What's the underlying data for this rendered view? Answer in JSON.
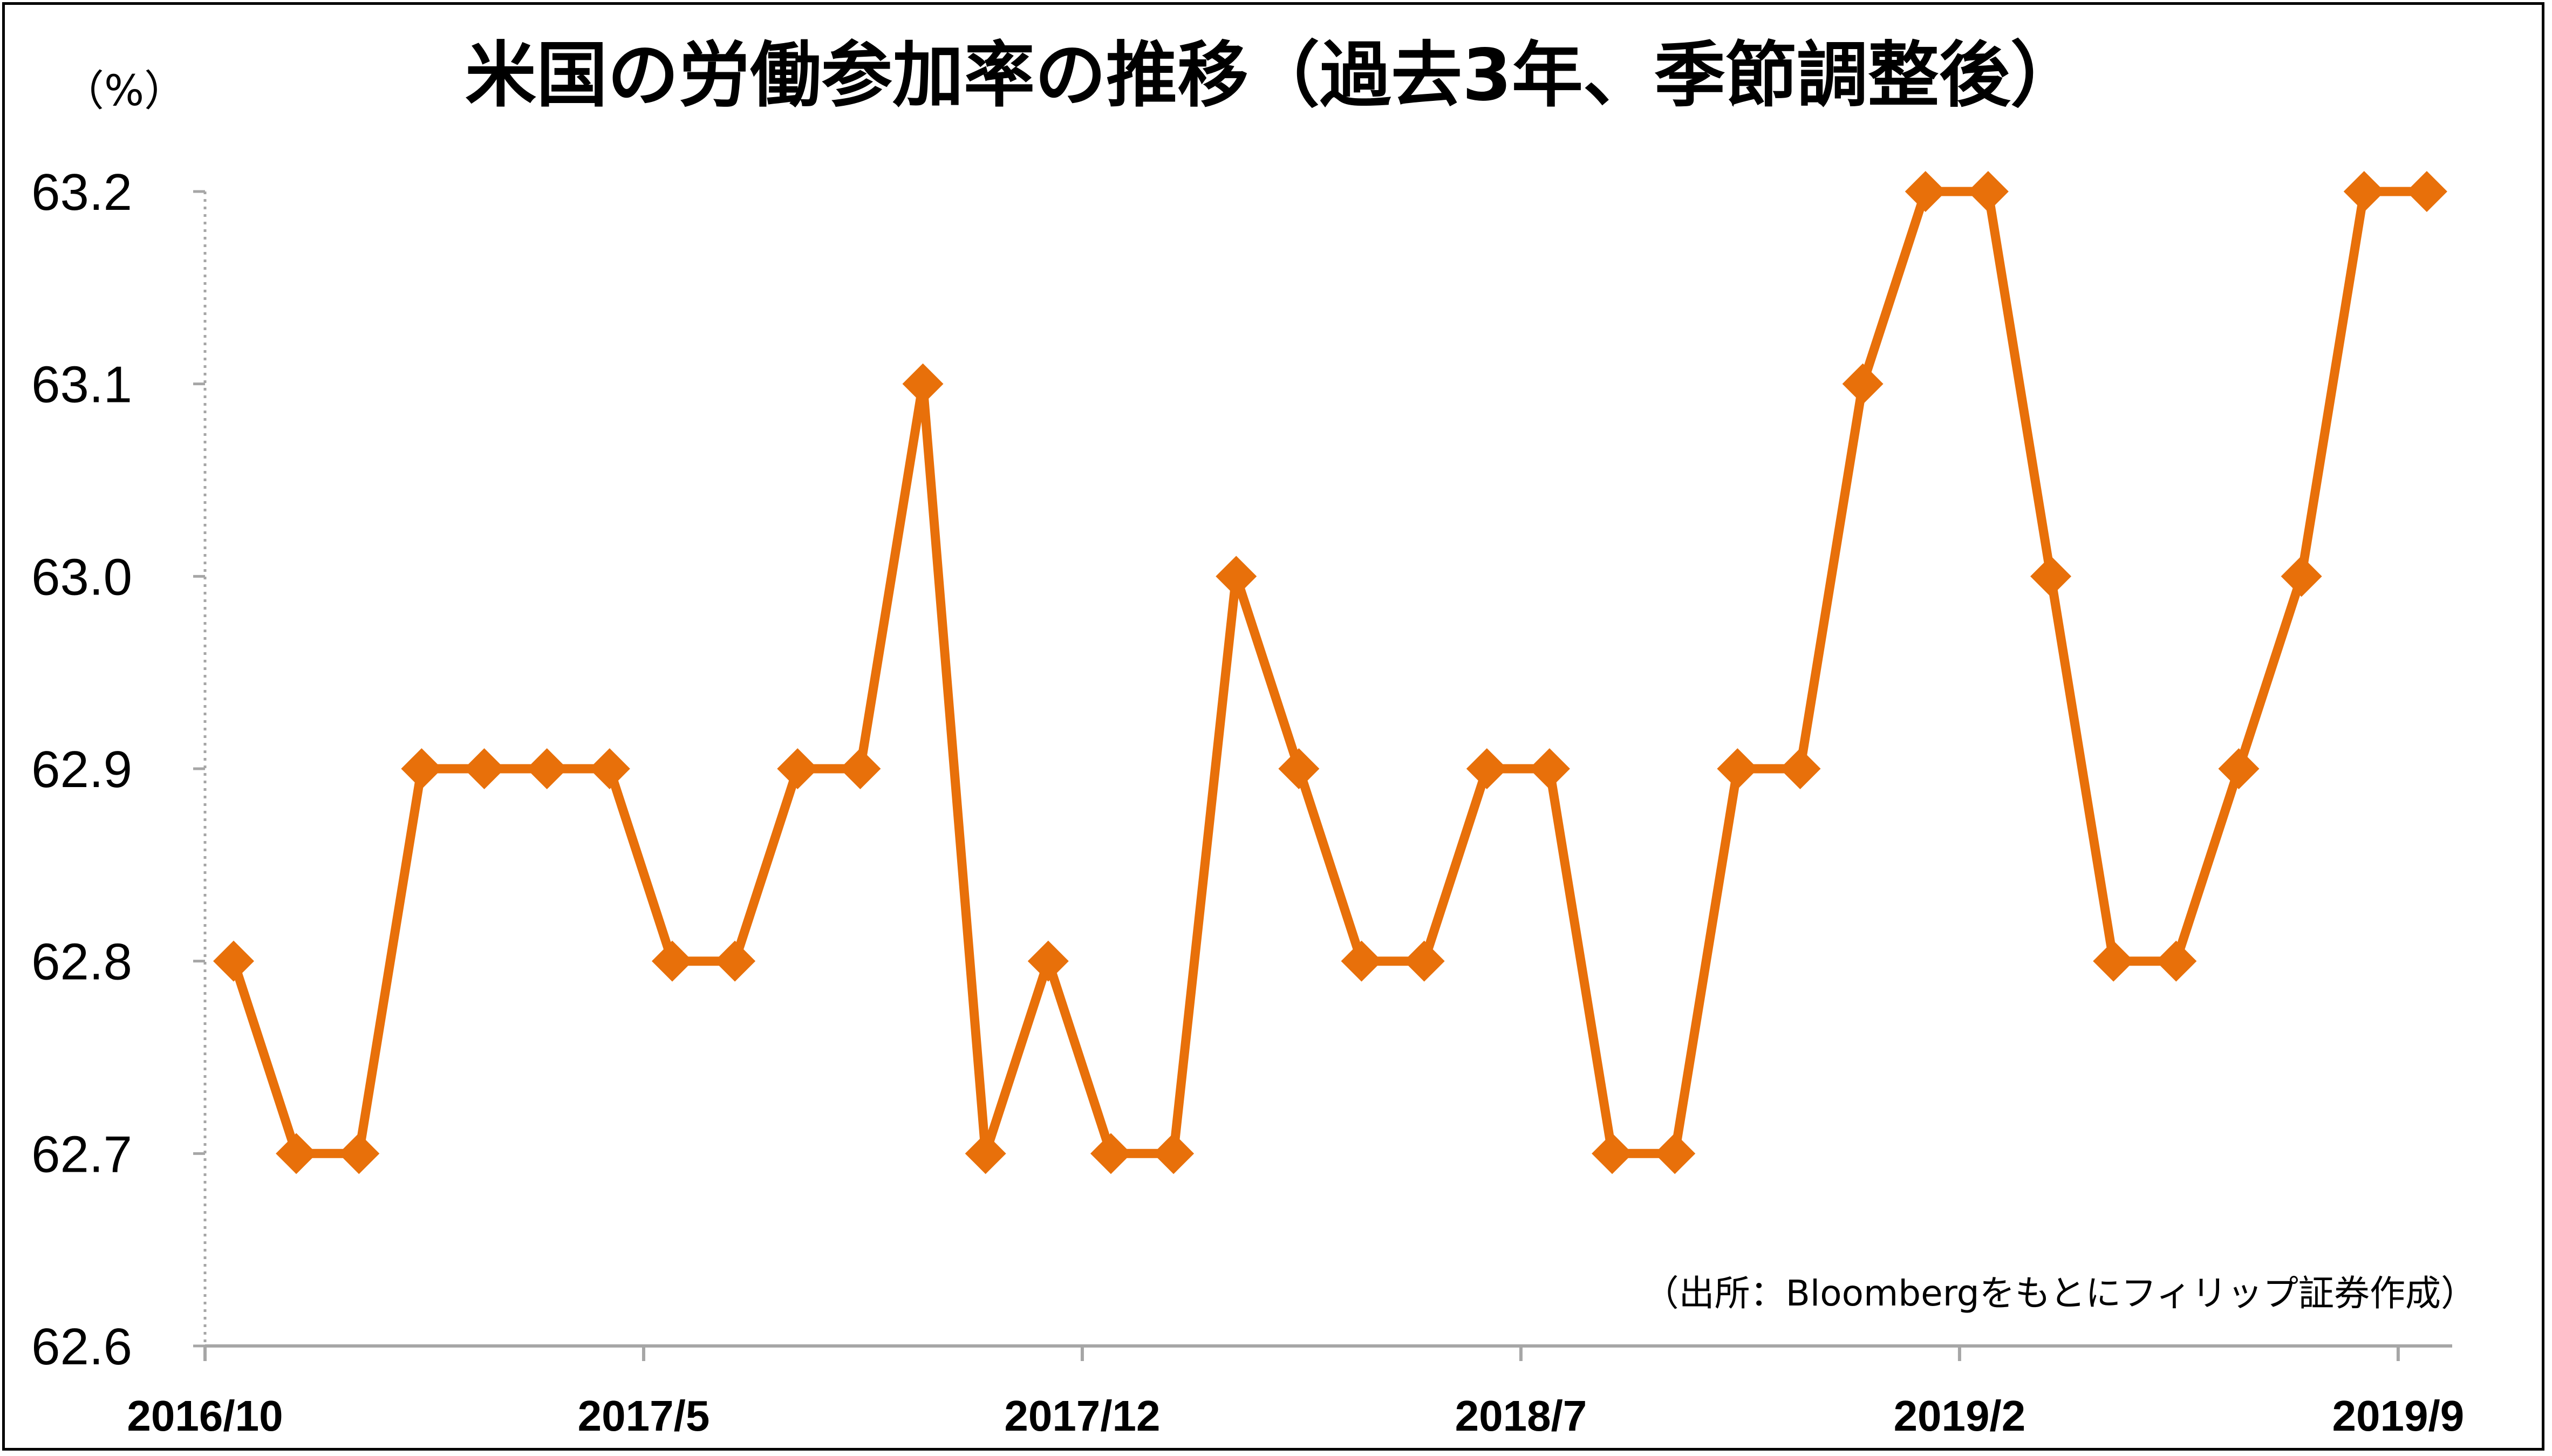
{
  "title": "米国の労働参加率の推移（過去3年、季節調整後）",
  "unit_label": "（%）",
  "source_note": "（出所：Bloombergをもとにフィリップ証券作成）",
  "colors": {
    "series": "#E8700A",
    "axis": "#a6a6a6",
    "text": "#000000",
    "border": "#000000"
  },
  "chart_data": {
    "type": "line",
    "title": "米国の労働参加率の推移（過去3年、季節調整後）",
    "ylabel": "（%）",
    "xlabel": "",
    "ylim": [
      62.6,
      63.2
    ],
    "yticks": [
      "62.6",
      "62.7",
      "62.8",
      "62.9",
      "63.0",
      "63.1",
      "63.2"
    ],
    "xtick_labels": [
      "2016/10",
      "2017/5",
      "2017/12",
      "2018/7",
      "2019/2",
      "2019/9"
    ],
    "grid": false,
    "marker": "diamond",
    "x": [
      "2016/10",
      "2016/11",
      "2016/12",
      "2017/1",
      "2017/2",
      "2017/3",
      "2017/4",
      "2017/5",
      "2017/6",
      "2017/7",
      "2017/8",
      "2017/9",
      "2017/10",
      "2017/11",
      "2017/12",
      "2018/1",
      "2018/2",
      "2018/3",
      "2018/4",
      "2018/5",
      "2018/6",
      "2018/7",
      "2018/8",
      "2018/9",
      "2018/10",
      "2018/11",
      "2018/12",
      "2019/1",
      "2019/2",
      "2019/3",
      "2019/4",
      "2019/5",
      "2019/6",
      "2019/7",
      "2019/8",
      "2019/9"
    ],
    "series": [
      {
        "values": [
          62.8,
          62.7,
          62.7,
          62.9,
          62.9,
          62.9,
          62.9,
          62.8,
          62.8,
          62.9,
          62.9,
          63.1,
          62.7,
          62.8,
          62.7,
          62.7,
          63.0,
          62.9,
          62.8,
          62.8,
          62.9,
          62.9,
          62.7,
          62.7,
          62.9,
          62.9,
          63.1,
          63.2,
          63.2,
          63.0,
          62.8,
          62.8,
          62.9,
          63.0,
          63.2,
          63.2
        ]
      }
    ],
    "annotations": [
      "（出所：Bloombergをもとにフィリップ証券作成）"
    ]
  }
}
